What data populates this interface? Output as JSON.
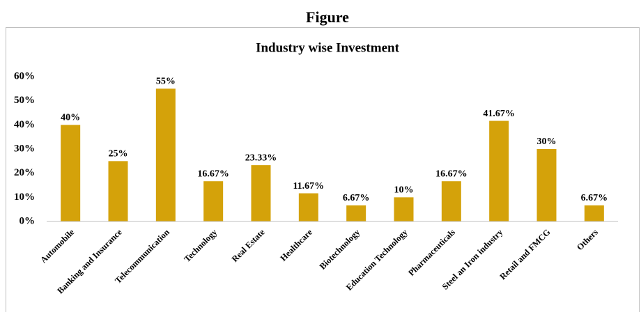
{
  "chart_data": {
    "type": "bar",
    "title": "Figure",
    "subtitle": "Industry wise Investment",
    "categories": [
      "Automobile",
      "Banking and Insurance",
      "Telecommunication",
      "Technology",
      "Real Estate",
      "Healthcare",
      "Biotechnology",
      "Education Technology",
      "Pharmaceuticals",
      "Steel an Iron industry",
      "Retail and FMCG",
      "Others"
    ],
    "values": [
      40,
      25,
      55,
      16.67,
      23.33,
      11.67,
      6.67,
      10,
      16.67,
      41.67,
      30,
      6.67
    ],
    "value_labels": [
      "40%",
      "25%",
      "55%",
      "16.67%",
      "23.33%",
      "11.67%",
      "6.67%",
      "10%",
      "16.67%",
      "41.67%",
      "30%",
      "6.67%"
    ],
    "color": "#d4a20a",
    "ylim": [
      0,
      60
    ],
    "yticks": [
      {
        "value": 0,
        "label": "0%"
      },
      {
        "value": 10,
        "label": "10%"
      },
      {
        "value": 20,
        "label": "20%"
      },
      {
        "value": 30,
        "label": "30%"
      },
      {
        "value": 40,
        "label": "40%"
      },
      {
        "value": 50,
        "label": "50%"
      },
      {
        "value": 60,
        "label": "60%"
      }
    ],
    "grid": false
  }
}
